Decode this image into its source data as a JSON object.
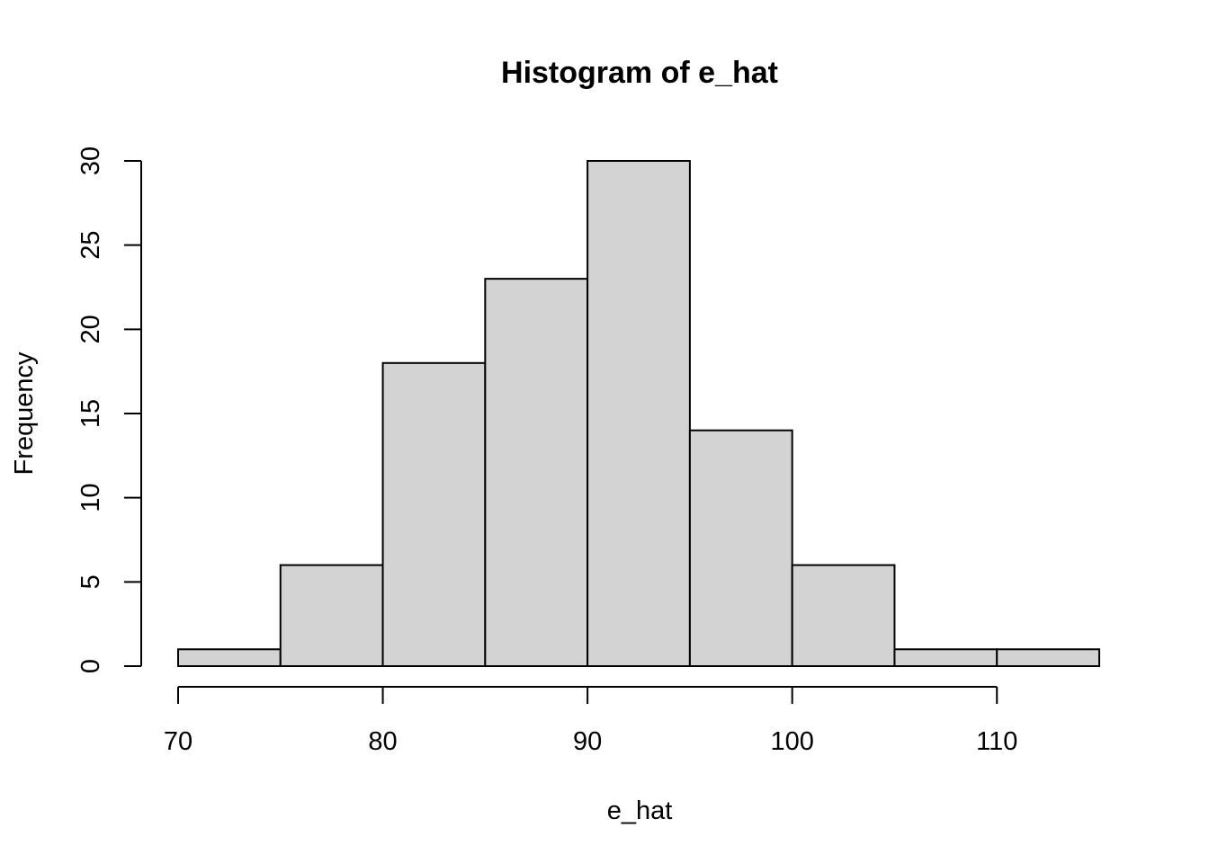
{
  "chart_data": {
    "type": "bar",
    "title": "Histogram of e_hat",
    "xlabel": "e_hat",
    "ylabel": "Frequency",
    "bins": [
      {
        "from": 70,
        "to": 75,
        "count": 1
      },
      {
        "from": 75,
        "to": 80,
        "count": 6
      },
      {
        "from": 80,
        "to": 85,
        "count": 18
      },
      {
        "from": 85,
        "to": 90,
        "count": 23
      },
      {
        "from": 90,
        "to": 95,
        "count": 30
      },
      {
        "from": 95,
        "to": 100,
        "count": 14
      },
      {
        "from": 100,
        "to": 105,
        "count": 6
      },
      {
        "from": 105,
        "to": 110,
        "count": 1
      },
      {
        "from": 110,
        "to": 115,
        "count": 1
      }
    ],
    "xlim": [
      70,
      115
    ],
    "ylim": [
      0,
      30
    ],
    "x_ticks": [
      70,
      80,
      90,
      100,
      110
    ],
    "x_tick_labels": [
      "70",
      "80",
      "90",
      "100",
      "110"
    ],
    "y_ticks": [
      0,
      5,
      10,
      15,
      20,
      25,
      30
    ],
    "y_tick_labels": [
      "0",
      "5",
      "10",
      "15",
      "20",
      "25",
      "30"
    ],
    "bar_fill": "#d3d3d3",
    "bar_stroke": "#000000",
    "grid": false
  }
}
